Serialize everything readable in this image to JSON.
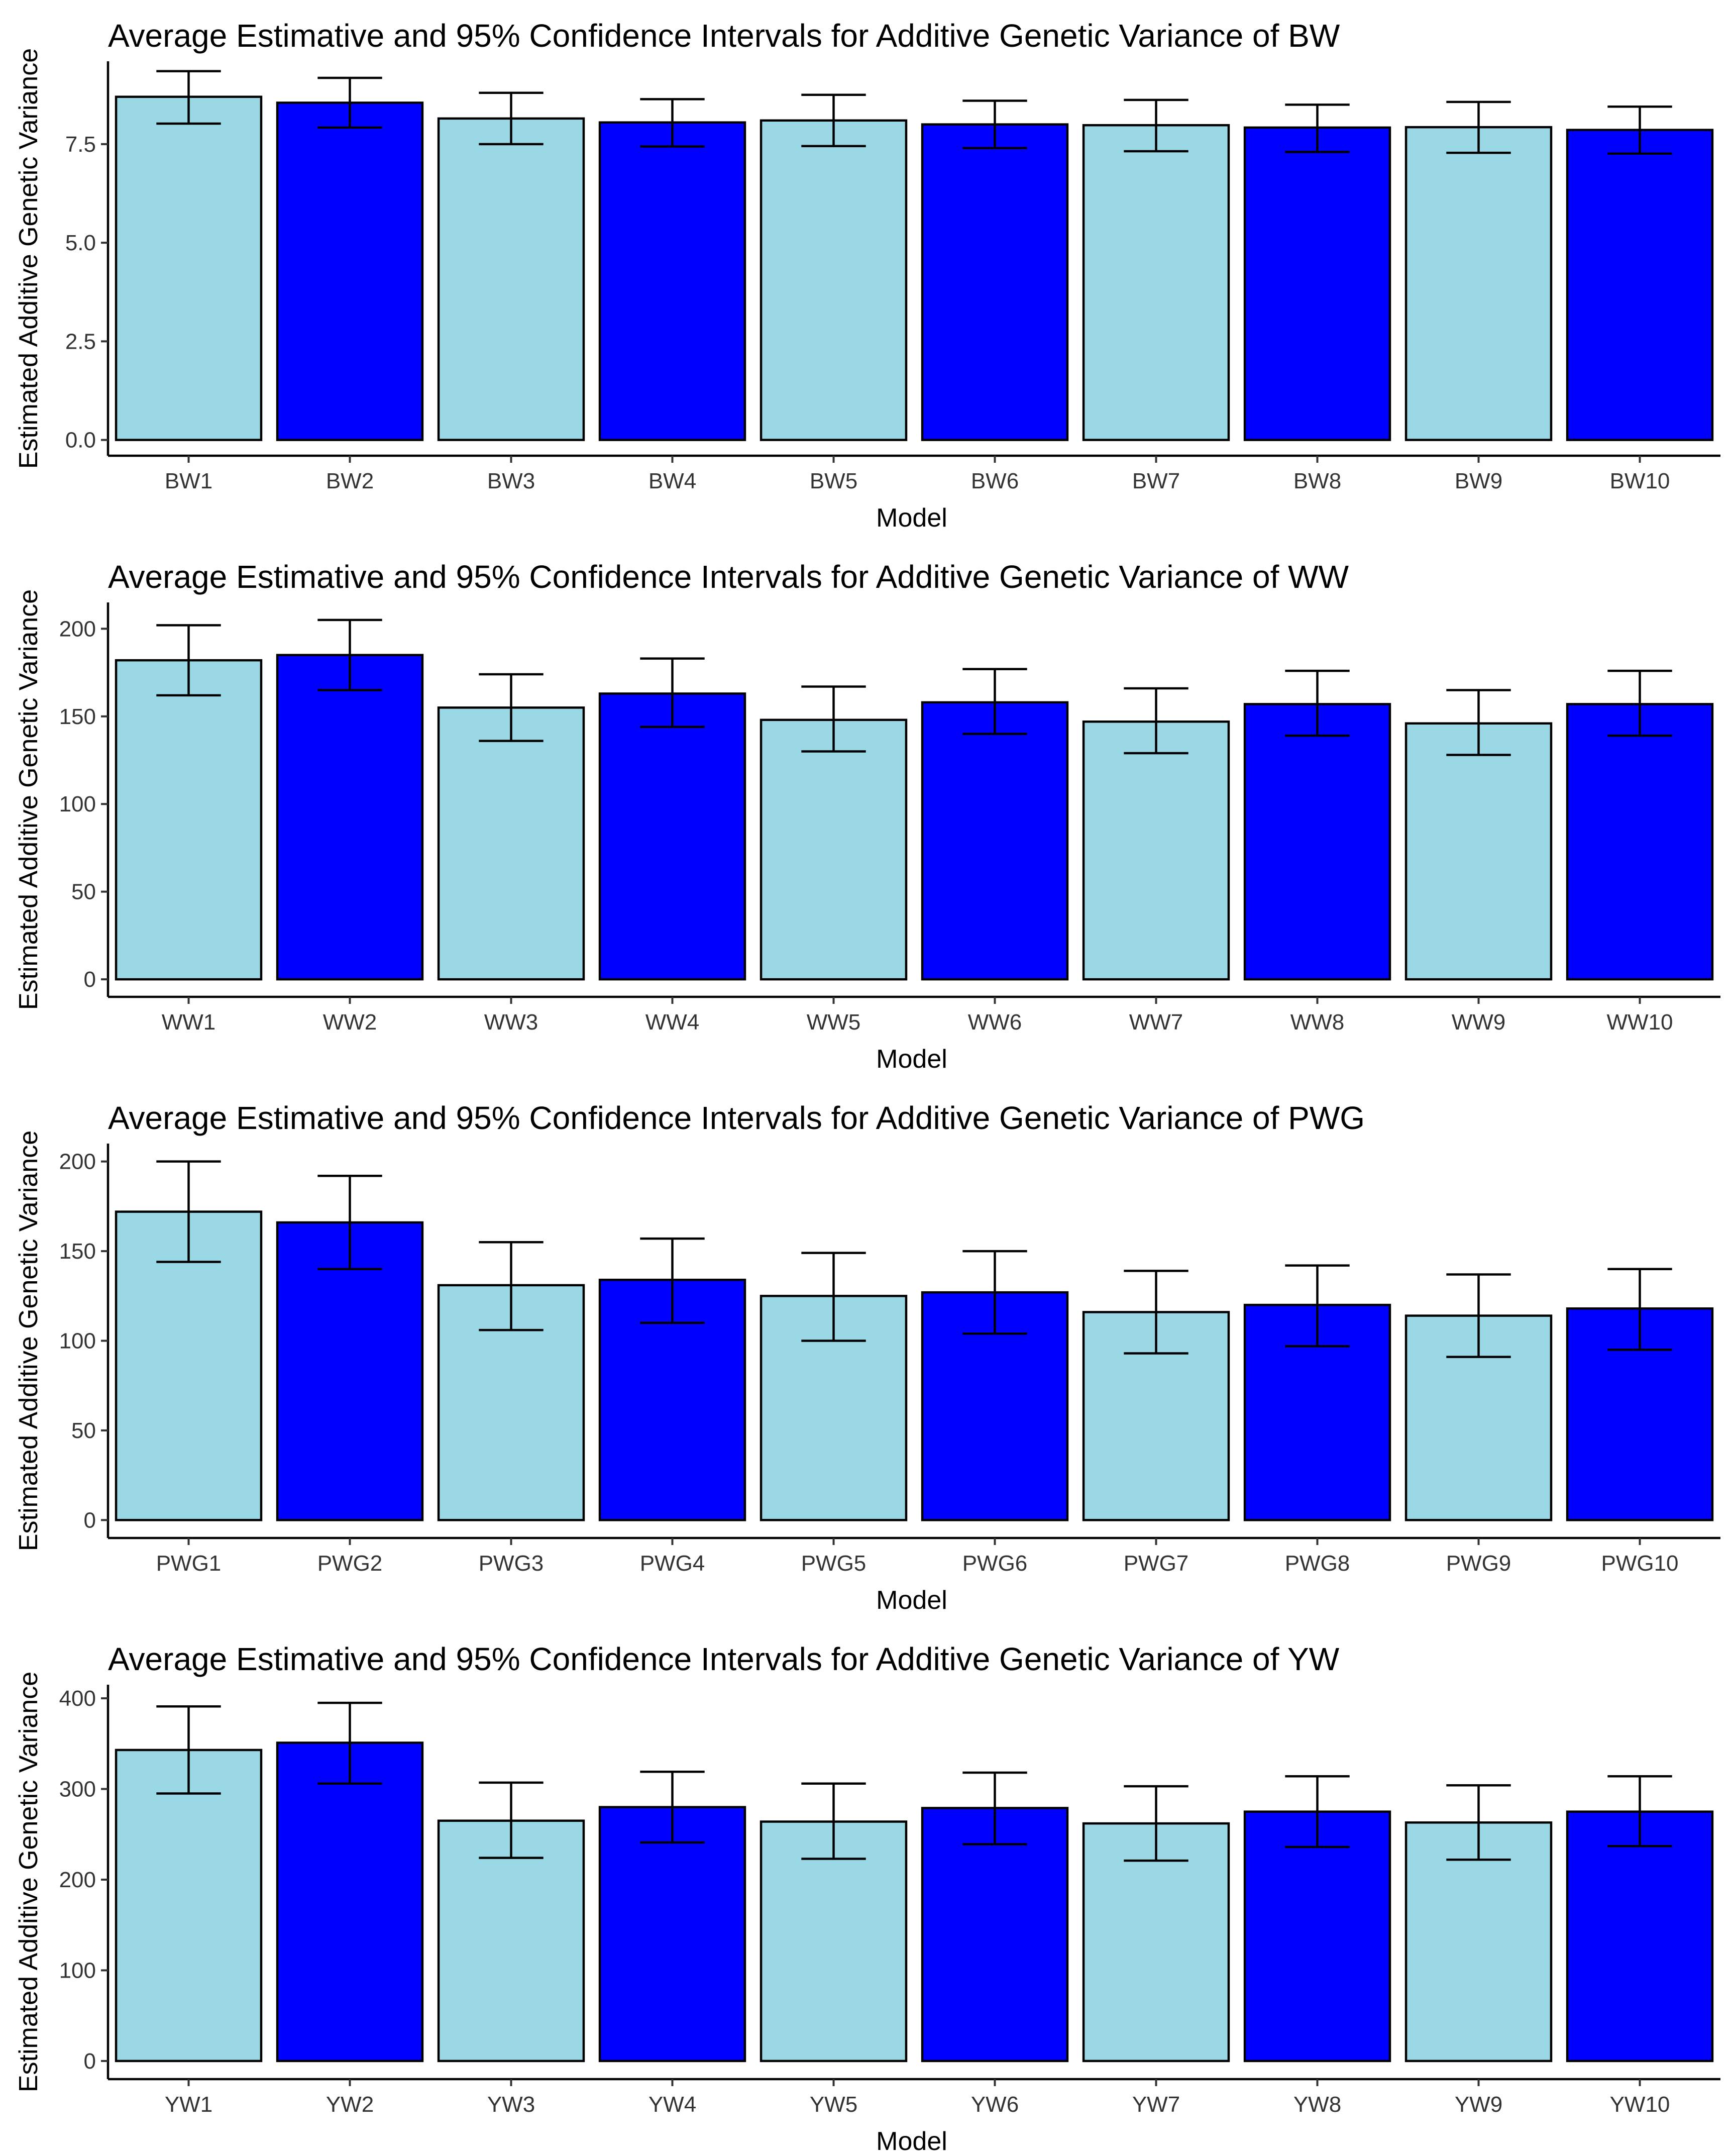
{
  "figure": {
    "colors": {
      "light": "#9bd8e6",
      "dark": "#0000ff",
      "outline": "#000000"
    }
  },
  "chart_data": [
    {
      "type": "bar",
      "title": "Average Estimative and 95% Confidence Intervals for Additive Genetic Variance of BW",
      "xlabel": "Model",
      "ylabel": "Estimated Additive Genetic Variance",
      "categories": [
        "BW1",
        "BW2",
        "BW3",
        "BW4",
        "BW5",
        "BW6",
        "BW7",
        "BW8",
        "BW9",
        "BW10"
      ],
      "values": [
        8.7,
        8.55,
        8.15,
        8.05,
        8.1,
        8.0,
        7.98,
        7.92,
        7.93,
        7.86
      ],
      "ci_lower": [
        8.02,
        7.92,
        7.5,
        7.44,
        7.45,
        7.4,
        7.32,
        7.3,
        7.28,
        7.26
      ],
      "ci_upper": [
        9.35,
        9.18,
        8.8,
        8.64,
        8.75,
        8.6,
        8.62,
        8.5,
        8.57,
        8.45
      ],
      "yticks": [
        0,
        2.5,
        5,
        7.5
      ],
      "ytick_labels": [
        "0.0",
        "2.5",
        "5.0",
        "7.5"
      ],
      "ylim": [
        -0.4,
        9.6
      ],
      "fill_pattern": [
        "light",
        "dark",
        "light",
        "dark",
        "light",
        "dark",
        "light",
        "dark",
        "light",
        "dark"
      ]
    },
    {
      "type": "bar",
      "title": "Average Estimative and 95% Confidence Intervals for Additive Genetic Variance of WW",
      "xlabel": "Model",
      "ylabel": "Estimated Additive Genetic Variance",
      "categories": [
        "WW1",
        "WW2",
        "WW3",
        "WW4",
        "WW5",
        "WW6",
        "WW7",
        "WW8",
        "WW9",
        "WW10"
      ],
      "values": [
        182,
        185,
        155,
        163,
        148,
        158,
        147,
        157,
        146,
        157
      ],
      "ci_lower": [
        162,
        165,
        136,
        144,
        130,
        140,
        129,
        139,
        128,
        139
      ],
      "ci_upper": [
        202,
        205,
        174,
        183,
        167,
        177,
        166,
        176,
        165,
        176
      ],
      "yticks": [
        0,
        50,
        100,
        150,
        200
      ],
      "ytick_labels": [
        "0",
        "50",
        "100",
        "150",
        "200"
      ],
      "ylim": [
        -10,
        215
      ],
      "fill_pattern": [
        "light",
        "dark",
        "light",
        "dark",
        "light",
        "dark",
        "light",
        "dark",
        "light",
        "dark"
      ]
    },
    {
      "type": "bar",
      "title": "Average Estimative and 95% Confidence Intervals for Additive Genetic Variance of PWG",
      "xlabel": "Model",
      "ylabel": "Estimated Additive Genetic Variance",
      "categories": [
        "PWG1",
        "PWG2",
        "PWG3",
        "PWG4",
        "PWG5",
        "PWG6",
        "PWG7",
        "PWG8",
        "PWG9",
        "PWG10"
      ],
      "values": [
        172,
        166,
        131,
        134,
        125,
        127,
        116,
        120,
        114,
        118
      ],
      "ci_lower": [
        144,
        140,
        106,
        110,
        100,
        104,
        93,
        97,
        91,
        95
      ],
      "ci_upper": [
        200,
        192,
        155,
        157,
        149,
        150,
        139,
        142,
        137,
        140
      ],
      "yticks": [
        0,
        50,
        100,
        150,
        200
      ],
      "ytick_labels": [
        "0",
        "50",
        "100",
        "150",
        "200"
      ],
      "ylim": [
        -10,
        210
      ],
      "fill_pattern": [
        "light",
        "dark",
        "light",
        "dark",
        "light",
        "dark",
        "light",
        "dark",
        "light",
        "dark"
      ]
    },
    {
      "type": "bar",
      "title": "Average Estimative and 95% Confidence Intervals for Additive Genetic Variance of YW",
      "xlabel": "Model",
      "ylabel": "Estimated Additive Genetic Variance",
      "categories": [
        "YW1",
        "YW2",
        "YW3",
        "YW4",
        "YW5",
        "YW6",
        "YW7",
        "YW8",
        "YW9",
        "YW10"
      ],
      "values": [
        343,
        351,
        265,
        280,
        264,
        279,
        262,
        275,
        263,
        275
      ],
      "ci_lower": [
        295,
        306,
        224,
        241,
        223,
        239,
        221,
        236,
        222,
        237
      ],
      "ci_upper": [
        391,
        395,
        307,
        319,
        306,
        318,
        303,
        314,
        304,
        314
      ],
      "yticks": [
        0,
        100,
        200,
        300,
        400
      ],
      "ytick_labels": [
        "0",
        "100",
        "200",
        "300",
        "400"
      ],
      "ylim": [
        -20,
        415
      ],
      "fill_pattern": [
        "light",
        "dark",
        "light",
        "dark",
        "light",
        "dark",
        "light",
        "dark",
        "light",
        "dark"
      ]
    }
  ]
}
